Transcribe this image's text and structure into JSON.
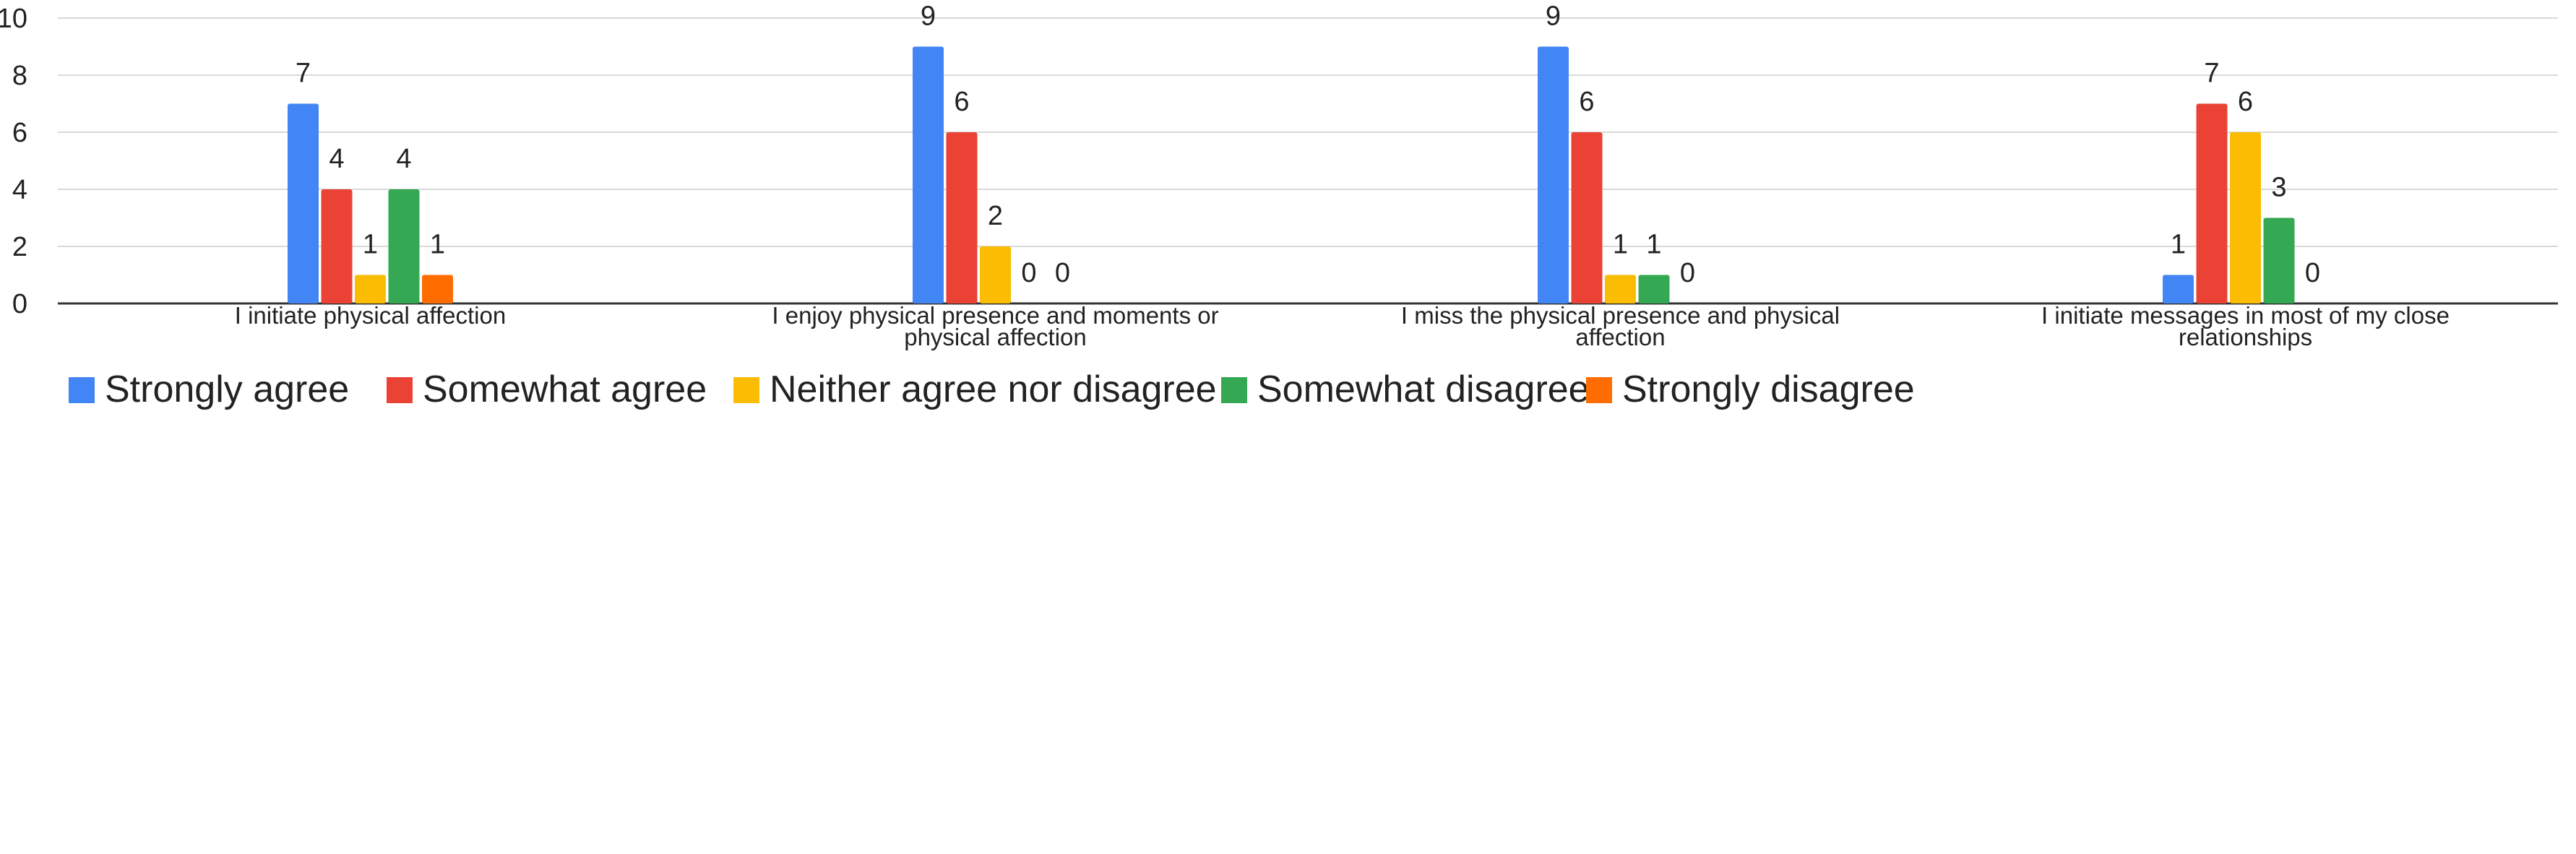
{
  "chart_data": {
    "type": "bar",
    "title": "",
    "xlabel": "",
    "ylabel": "",
    "ylim": [
      0,
      10
    ],
    "yticks": [
      0,
      2,
      4,
      6,
      8,
      10
    ],
    "grid": true,
    "legend_position": "bottom",
    "categories": [
      [
        "I initiate physical affection"
      ],
      [
        "I enjoy physical presence and moments or",
        "physical affection"
      ],
      [
        "I miss the physical presence and physical",
        "affection"
      ],
      [
        "I initiate messages in most of my close",
        "relationships"
      ]
    ],
    "series": [
      {
        "name": "Strongly agree",
        "color": "#4285F4",
        "values": [
          7,
          9,
          9,
          1
        ]
      },
      {
        "name": "Somewhat agree",
        "color": "#EA4335",
        "values": [
          4,
          6,
          6,
          7
        ]
      },
      {
        "name": "Neither agree nor disagree",
        "color": "#FBBC04",
        "values": [
          1,
          2,
          1,
          6
        ]
      },
      {
        "name": "Somewhat disagree",
        "color": "#34A853",
        "values": [
          4,
          0,
          1,
          3
        ]
      },
      {
        "name": "Strongly disagree",
        "color": "#FF6D01",
        "values": [
          1,
          0,
          0,
          0
        ]
      }
    ]
  }
}
